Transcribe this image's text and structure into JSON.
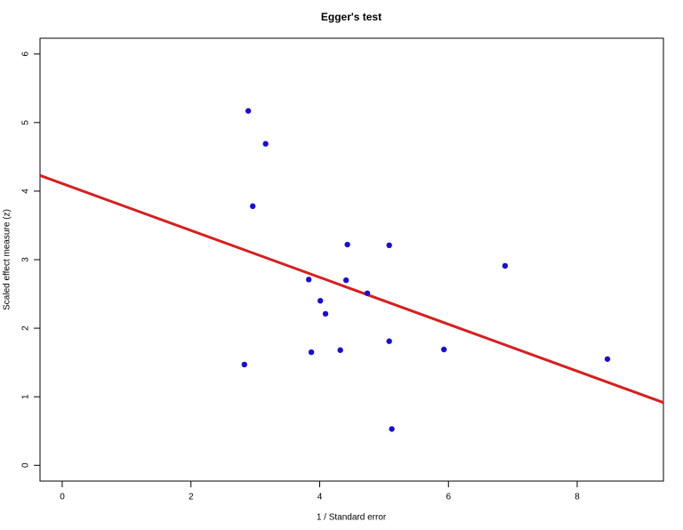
{
  "chart_data": {
    "type": "scatter",
    "title": "Egger's test",
    "x_label": "1 / Standard error",
    "y_label": "Scaled effect measure (z)",
    "x": [
      2.89,
      3.16,
      2.96,
      4.43,
      5.08,
      6.88,
      3.83,
      4.41,
      4.74,
      4.01,
      4.09,
      5.08,
      5.93,
      4.32,
      3.87,
      2.83,
      8.47,
      5.12
    ],
    "values": [
      5.17,
      4.69,
      3.78,
      3.22,
      3.21,
      2.91,
      2.71,
      2.7,
      2.51,
      2.4,
      2.21,
      1.81,
      1.69,
      1.68,
      1.65,
      1.47,
      1.55,
      0.53
    ],
    "color": "#1a0fc8",
    "regression": {
      "intercept": 4.11,
      "slope": -0.342,
      "color": "#d42020"
    },
    "xlim": [
      -0.345,
      9.34
    ],
    "ylim": [
      -0.23,
      6.23
    ],
    "xticks": [
      0,
      2,
      4,
      6,
      8
    ],
    "yticks": [
      0,
      1,
      2,
      3,
      4,
      5,
      6
    ]
  }
}
